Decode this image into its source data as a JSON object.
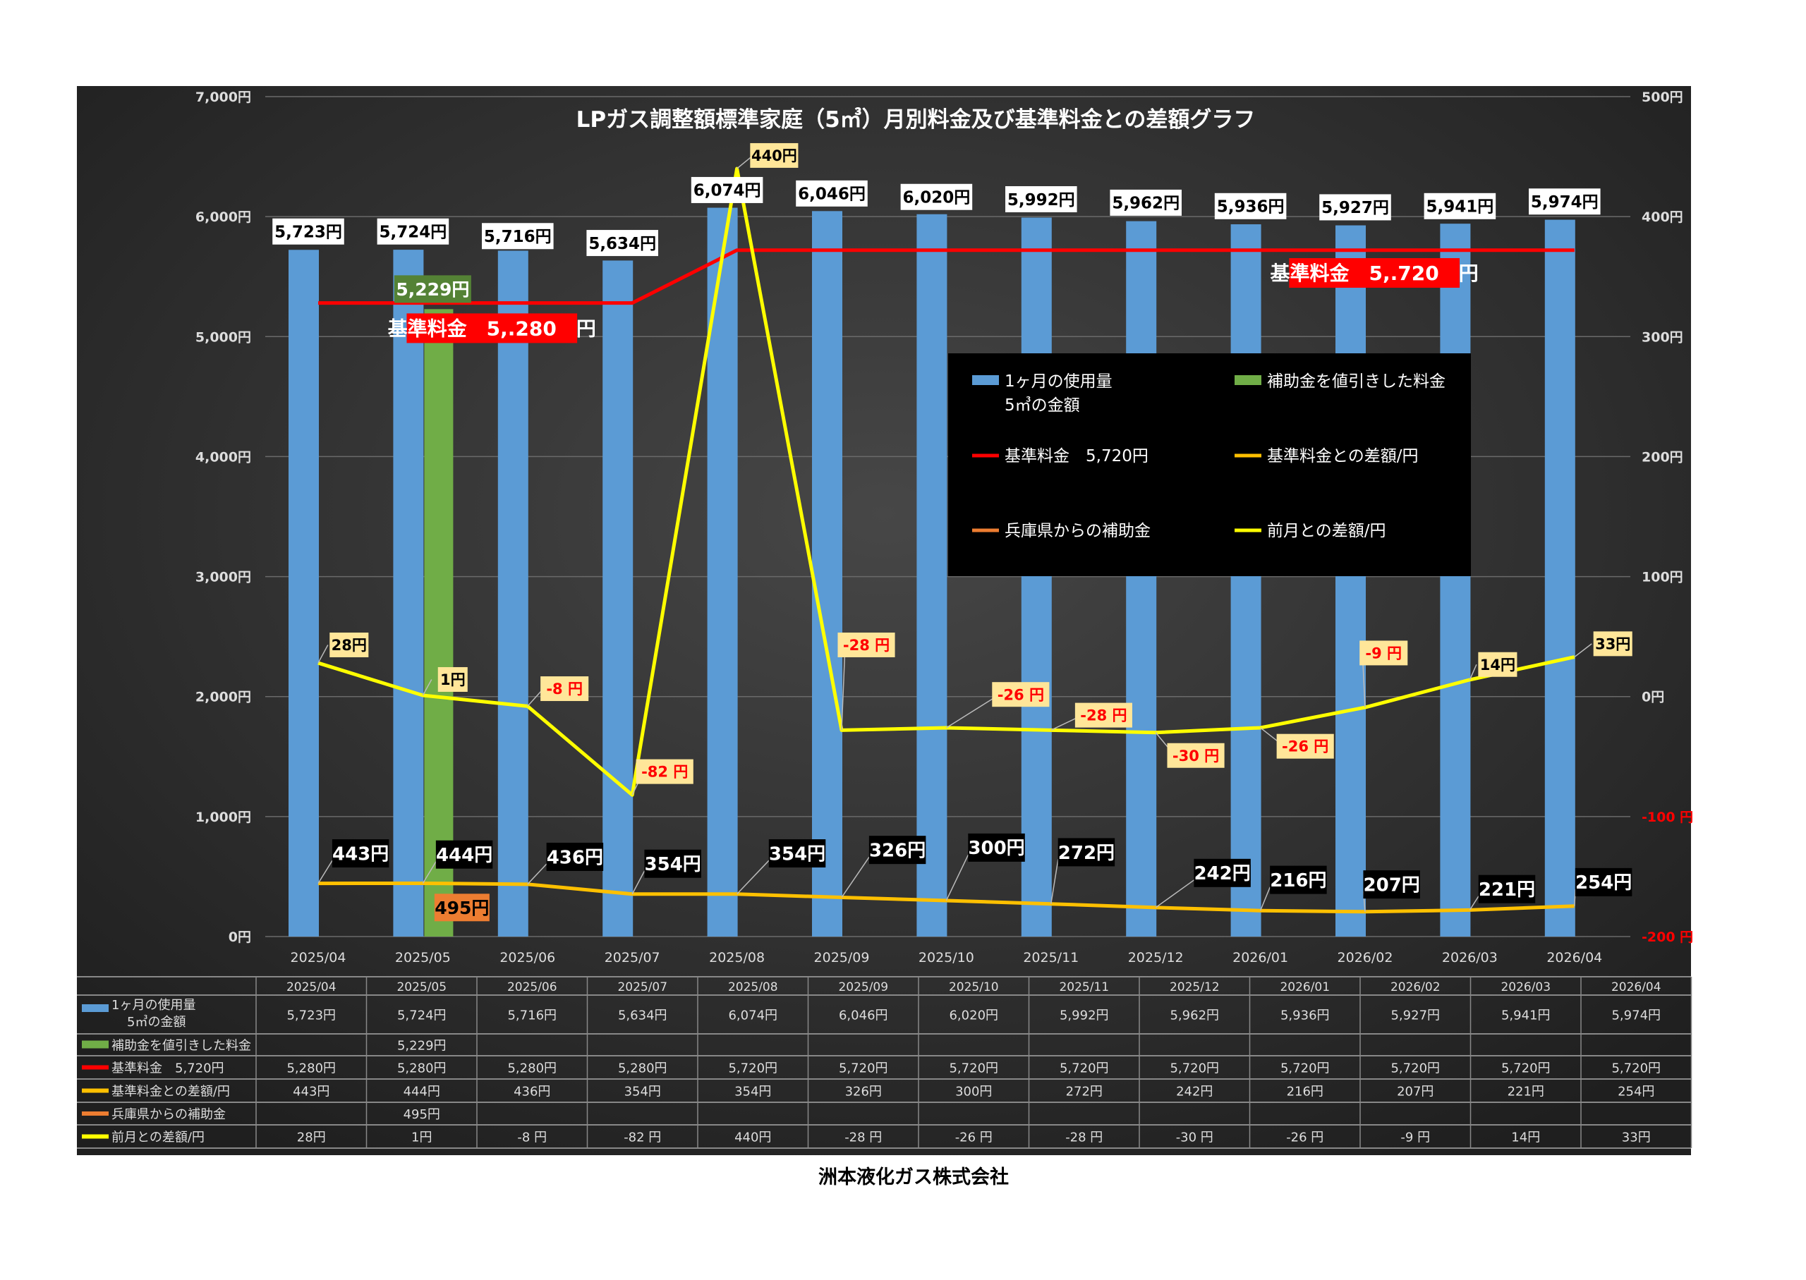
{
  "chart_data": {
    "type": "bar",
    "title": "LPガス調整額標準家庭（5㎥）月別料金及び基準料金との差額グラフ",
    "categories": [
      "2025/04",
      "2025/05",
      "2025/06",
      "2025/07",
      "2025/08",
      "2025/09",
      "2025/10",
      "2025/11",
      "2025/12",
      "2026/01",
      "2026/02",
      "2026/03",
      "2026/04"
    ],
    "y_left": {
      "range": [
        0,
        7000
      ],
      "ticks": [
        "0円",
        "1,000円",
        "2,000円",
        "3,000円",
        "4,000円",
        "5,000円",
        "6,000円",
        "7,000円"
      ]
    },
    "y_right": {
      "range": [
        -200,
        500
      ],
      "ticks": [
        "-200 円",
        "-100 円",
        "0円",
        "100円",
        "200円",
        "300円",
        "400円",
        "500円"
      ],
      "negative_color": "#ff0000"
    },
    "grid": true,
    "legend_placement": "center-right",
    "series": [
      {
        "name": "1ヶ月の使用量\n5㎥の金額",
        "legend": [
          "1ヶ月の使用量",
          "5㎥の金額"
        ],
        "type": "bar",
        "axis": "left",
        "color": "#5b9bd5",
        "values": [
          5723,
          5724,
          5716,
          5634,
          6074,
          6046,
          6020,
          5992,
          5962,
          5936,
          5927,
          5941,
          5974
        ],
        "labels": [
          "5,723円",
          "5,724円",
          "5,716円",
          "5,634円",
          "6,074円",
          "6,046円",
          "6,020円",
          "5,992円",
          "5,962円",
          "5,936円",
          "5,927円",
          "5,941円",
          "5,974円"
        ]
      },
      {
        "name": "補助金を値引きした料金",
        "type": "bar",
        "axis": "left",
        "color": "#70ad47",
        "values": [
          null,
          5229,
          null,
          null,
          null,
          null,
          null,
          null,
          null,
          null,
          null,
          null,
          null
        ],
        "labels": [
          "",
          "5,229円",
          "",
          "",
          "",
          "",
          "",
          "",
          "",
          "",
          "",
          "",
          ""
        ]
      },
      {
        "name": "基準料金　5,720円",
        "type": "line",
        "axis": "left",
        "color": "#ff0000",
        "values": [
          5280,
          5280,
          5280,
          5280,
          5720,
          5720,
          5720,
          5720,
          5720,
          5720,
          5720,
          5720,
          5720
        ],
        "labels": [
          "5,280円",
          "5,280円",
          "5,280円",
          "5,280円",
          "5,720円",
          "5,720円",
          "5,720円",
          "5,720円",
          "5,720円",
          "5,720円",
          "5,720円",
          "5,720円",
          "5,720円"
        ]
      },
      {
        "name": "基準料金との差額/円",
        "type": "line",
        "axis": "left",
        "color": "#ffc000",
        "values": [
          443,
          444,
          436,
          354,
          354,
          326,
          300,
          272,
          242,
          216,
          207,
          221,
          254
        ],
        "labels": [
          "443円",
          "444円",
          "436円",
          "354円",
          "354円",
          "326円",
          "300円",
          "272円",
          "242円",
          "216円",
          "207円",
          "221円",
          "254円"
        ]
      },
      {
        "name": "兵庫県からの補助金",
        "type": "line",
        "axis": "left",
        "color": "#ed7d31",
        "values": [
          null,
          495,
          null,
          null,
          null,
          null,
          null,
          null,
          null,
          null,
          null,
          null,
          null
        ],
        "labels": [
          "",
          "495円",
          "",
          "",
          "",
          "",
          "",
          "",
          "",
          "",
          "",
          "",
          ""
        ]
      },
      {
        "name": "前月との差額/円",
        "type": "line",
        "axis": "right",
        "color": "#ffff00",
        "values": [
          28,
          1,
          -8,
          -82,
          440,
          -28,
          -26,
          -28,
          -30,
          -26,
          -9,
          14,
          33
        ],
        "labels": [
          "28円",
          "1円",
          "-8 円",
          "-82 円",
          "440円",
          "-28 円",
          "-26 円",
          "-28 円",
          "-30 円",
          "-26 円",
          "-9 円",
          "14円",
          "33円"
        ]
      }
    ],
    "annotations": [
      "基準料金　5,.280　円",
      "基準料金　5,.720　円"
    ]
  },
  "footer": "洲本液化ガス株式会社"
}
